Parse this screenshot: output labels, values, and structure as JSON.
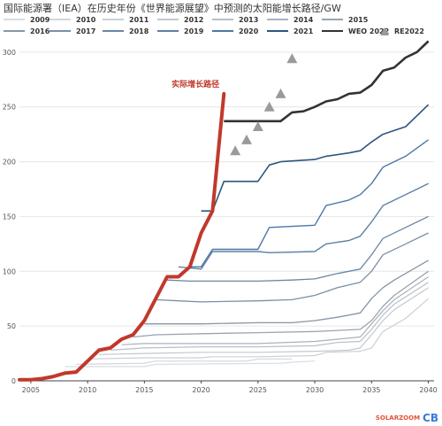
{
  "chart_data": {
    "type": "line",
    "title": "国际能源署（IEA）在历史年份《世界能源展望》中预测的太阳能增长路径/GW",
    "xlabel": "",
    "ylabel": "",
    "xlim": [
      2004,
      2040.5
    ],
    "ylim": [
      0,
      312
    ],
    "x_ticks": [
      "2005",
      "2010",
      "2015",
      "2020",
      "2025",
      "2030",
      "2035",
      "2040"
    ],
    "y_ticks": [
      "0",
      "50",
      "100",
      "150",
      "200",
      "250",
      "300"
    ],
    "grid": "horizontal",
    "legend_position": "top",
    "annotation": {
      "text": "实际增长路径",
      "color": "#c0392b",
      "x": 2021.6,
      "y": 262
    },
    "series": [
      {
        "name": "2009",
        "color": "#d9dde2",
        "width": 1.2,
        "points": [
          [
            2008,
            13
          ],
          [
            2015,
            13
          ],
          [
            2016,
            15
          ],
          [
            2027,
            16
          ],
          [
            2028,
            17
          ],
          [
            2030,
            18
          ]
        ]
      },
      {
        "name": "2010",
        "color": "#d2d6dc",
        "width": 1.2,
        "points": [
          [
            2009,
            15
          ],
          [
            2015,
            16
          ],
          [
            2016,
            18
          ],
          [
            2024,
            18
          ],
          [
            2025,
            20
          ],
          [
            2028,
            20
          ]
        ]
      },
      {
        "name": "2011",
        "color": "#cbd0d6",
        "width": 1.2,
        "points": [
          [
            2010,
            20
          ],
          [
            2015,
            21
          ],
          [
            2020,
            21
          ],
          [
            2021,
            22
          ],
          [
            2025,
            22
          ],
          [
            2030,
            23
          ],
          [
            2031,
            26
          ],
          [
            2034,
            27
          ],
          [
            2035,
            30
          ],
          [
            2036,
            45
          ],
          [
            2038,
            57
          ],
          [
            2040,
            75
          ]
        ]
      },
      {
        "name": "2012",
        "color": "#c2c8cf",
        "width": 1.2,
        "points": [
          [
            2011,
            24
          ],
          [
            2015,
            25
          ],
          [
            2020,
            26
          ],
          [
            2025,
            26
          ],
          [
            2030,
            27
          ],
          [
            2033,
            28
          ],
          [
            2034,
            30
          ],
          [
            2035,
            42
          ],
          [
            2036,
            55
          ],
          [
            2037,
            65
          ],
          [
            2040,
            85
          ]
        ]
      },
      {
        "name": "2013",
        "color": "#b8bfc7",
        "width": 1.2,
        "points": [
          [
            2012,
            28
          ],
          [
            2015,
            30
          ],
          [
            2020,
            31
          ],
          [
            2025,
            31
          ],
          [
            2030,
            32
          ],
          [
            2032,
            35
          ],
          [
            2034,
            36
          ],
          [
            2035,
            47
          ],
          [
            2036,
            60
          ],
          [
            2037,
            70
          ],
          [
            2040,
            90
          ]
        ]
      },
      {
        "name": "2014",
        "color": "#aab2bc",
        "width": 1.2,
        "points": [
          [
            2013,
            33
          ],
          [
            2015,
            34
          ],
          [
            2020,
            34
          ],
          [
            2025,
            34
          ],
          [
            2030,
            36
          ],
          [
            2032,
            38
          ],
          [
            2034,
            40
          ],
          [
            2035,
            52
          ],
          [
            2036,
            64
          ],
          [
            2037,
            74
          ],
          [
            2040,
            95
          ]
        ]
      },
      {
        "name": "2015",
        "color": "#9aa4b0",
        "width": 1.3,
        "points": [
          [
            2014,
            40
          ],
          [
            2016,
            42
          ],
          [
            2020,
            43
          ],
          [
            2025,
            44
          ],
          [
            2030,
            45
          ],
          [
            2034,
            47
          ],
          [
            2035,
            55
          ],
          [
            2036,
            68
          ],
          [
            2037,
            78
          ],
          [
            2040,
            100
          ]
        ]
      },
      {
        "name": "2016",
        "color": "#8896a6",
        "width": 1.3,
        "points": [
          [
            2015,
            52
          ],
          [
            2020,
            52
          ],
          [
            2025,
            53
          ],
          [
            2028,
            53
          ],
          [
            2030,
            55
          ],
          [
            2032,
            58
          ],
          [
            2033,
            60
          ],
          [
            2034,
            62
          ],
          [
            2035,
            75
          ],
          [
            2036,
            85
          ],
          [
            2037,
            92
          ],
          [
            2040,
            110
          ]
        ]
      },
      {
        "name": "2017",
        "color": "#7a8fa6",
        "width": 1.3,
        "points": [
          [
            2016,
            74
          ],
          [
            2018,
            73
          ],
          [
            2020,
            72
          ],
          [
            2025,
            73
          ],
          [
            2028,
            74
          ],
          [
            2030,
            78
          ],
          [
            2032,
            85
          ],
          [
            2034,
            90
          ],
          [
            2035,
            100
          ],
          [
            2036,
            115
          ],
          [
            2038,
            125
          ],
          [
            2040,
            135
          ]
        ]
      },
      {
        "name": "2018",
        "color": "#6b87a5",
        "width": 1.3,
        "points": [
          [
            2017,
            92
          ],
          [
            2019,
            91
          ],
          [
            2025,
            91
          ],
          [
            2028,
            92
          ],
          [
            2030,
            93
          ],
          [
            2032,
            98
          ],
          [
            2034,
            102
          ],
          [
            2035,
            115
          ],
          [
            2036,
            130
          ],
          [
            2038,
            140
          ],
          [
            2040,
            150
          ]
        ]
      },
      {
        "name": "2019",
        "color": "#5d80a5",
        "width": 1.4,
        "points": [
          [
            2018,
            104
          ],
          [
            2019,
            103
          ],
          [
            2020,
            102
          ],
          [
            2021,
            118
          ],
          [
            2025,
            118
          ],
          [
            2026,
            117
          ],
          [
            2030,
            118
          ],
          [
            2031,
            125
          ],
          [
            2033,
            128
          ],
          [
            2034,
            132
          ],
          [
            2035,
            145
          ],
          [
            2036,
            160
          ],
          [
            2038,
            170
          ],
          [
            2040,
            180
          ]
        ]
      },
      {
        "name": "2020",
        "color": "#4b78a8",
        "width": 1.4,
        "points": [
          [
            2019,
            104
          ],
          [
            2020,
            104
          ],
          [
            2021,
            120
          ],
          [
            2025,
            120
          ],
          [
            2026,
            140
          ],
          [
            2030,
            142
          ],
          [
            2031,
            160
          ],
          [
            2033,
            165
          ],
          [
            2034,
            170
          ],
          [
            2035,
            180
          ],
          [
            2036,
            195
          ],
          [
            2038,
            205
          ],
          [
            2040,
            220
          ]
        ]
      },
      {
        "name": "2021",
        "color": "#2c5680",
        "width": 1.6,
        "points": [
          [
            2020,
            155
          ],
          [
            2021,
            155
          ],
          [
            2022,
            182
          ],
          [
            2025,
            182
          ],
          [
            2026,
            197
          ],
          [
            2027,
            200
          ],
          [
            2030,
            202
          ],
          [
            2031,
            205
          ],
          [
            2033,
            208
          ],
          [
            2034,
            210
          ],
          [
            2035,
            218
          ],
          [
            2036,
            225
          ],
          [
            2038,
            232
          ],
          [
            2040,
            252
          ]
        ]
      },
      {
        "name": "WEO 2022",
        "color": "#333333",
        "width": 2.6,
        "points": [
          [
            2022,
            237
          ],
          [
            2025,
            237
          ],
          [
            2027,
            237
          ],
          [
            2028,
            245
          ],
          [
            2029,
            246
          ],
          [
            2030,
            250
          ],
          [
            2031,
            255
          ],
          [
            2032,
            257
          ],
          [
            2033,
            262
          ],
          [
            2034,
            263
          ],
          [
            2035,
            270
          ],
          [
            2036,
            283
          ],
          [
            2037,
            286
          ],
          [
            2038,
            295
          ],
          [
            2039,
            300
          ],
          [
            2040,
            310
          ]
        ]
      }
    ],
    "actual": {
      "color": "#c0392b",
      "points": [
        [
          2004,
          1
        ],
        [
          2005,
          1
        ],
        [
          2006,
          2
        ],
        [
          2007,
          4
        ],
        [
          2008,
          7
        ],
        [
          2009,
          8
        ],
        [
          2010,
          18
        ],
        [
          2011,
          28
        ],
        [
          2012,
          30
        ],
        [
          2013,
          38
        ],
        [
          2014,
          42
        ],
        [
          2015,
          55
        ],
        [
          2016,
          75
        ],
        [
          2017,
          95
        ],
        [
          2018,
          95
        ],
        [
          2019,
          104
        ],
        [
          2020,
          135
        ],
        [
          2021,
          155
        ],
        [
          2022,
          262
        ]
      ]
    },
    "re2022": {
      "name": "RE2022",
      "color": "#9a9a9a",
      "points": [
        [
          2023,
          210
        ],
        [
          2024,
          220
        ],
        [
          2025,
          232
        ],
        [
          2026,
          250
        ],
        [
          2027,
          262
        ],
        [
          2028,
          294
        ]
      ]
    }
  },
  "watermark": {
    "text": "SOLARZOOM",
    "logo": "CB"
  }
}
